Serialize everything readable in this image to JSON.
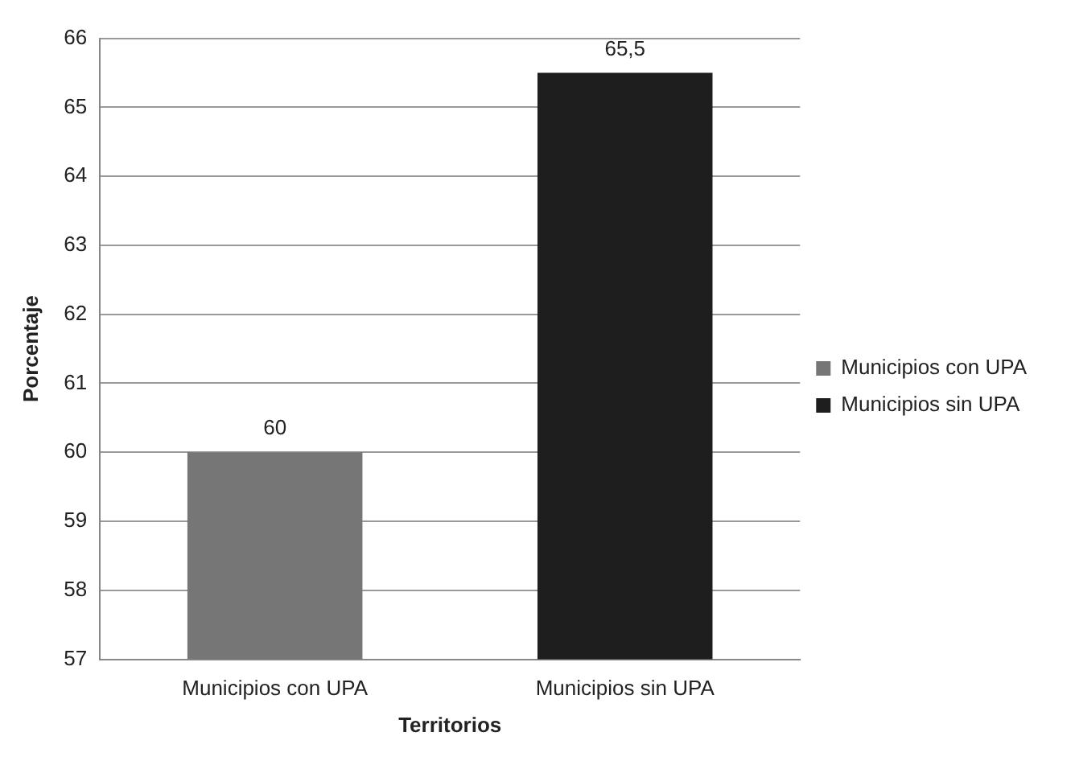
{
  "chart_data": {
    "type": "bar",
    "xlabel": "Territorios",
    "ylabel": "Porcentaje",
    "categories": [
      "Municipios con UPA",
      "Municipios sin UPA"
    ],
    "series": [
      {
        "name": "Municipios con UPA",
        "color": "#767676",
        "values": [
          60,
          null
        ],
        "value_labels": [
          "60",
          null
        ]
      },
      {
        "name": "Municipios sin UPA",
        "color": "#1e1e1e",
        "values": [
          null,
          65.5
        ],
        "value_labels": [
          null,
          "65,5"
        ]
      }
    ],
    "ylim": [
      57,
      66
    ],
    "yticks": [
      57,
      58,
      59,
      60,
      61,
      62,
      63,
      64,
      65,
      66
    ],
    "grid": "y",
    "legend": "right"
  }
}
